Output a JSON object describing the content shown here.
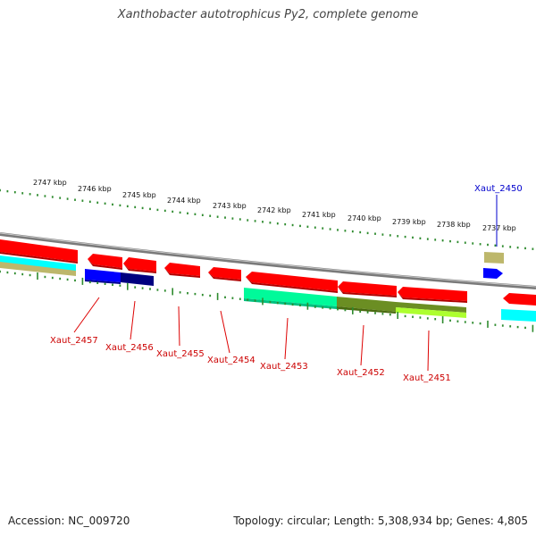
{
  "title": "Xanthobacter autotrophicus Py2, complete genome",
  "footer": {
    "accession": "Accession: NC_009720",
    "summary": "Topology: circular; Length: 5,308,934 bp; Genes: 4,805"
  },
  "colors": {
    "backbone": "#8a8a8a",
    "tick": "#2e8b2e",
    "label_red": "#cc0000",
    "label_blue": "#0000cc",
    "gene_red": "#ff0000",
    "gene_cyan": "#00ffff",
    "gene_tan": "#bdb76b",
    "gene_blue": "#0000ff",
    "gene_navy": "#000080",
    "gene_teal": "#00fa9a",
    "gene_olive": "#6b8e23",
    "gene_lime": "#adff2f"
  },
  "scale": {
    "ticks": [
      {
        "label": "2747 kbp"
      },
      {
        "label": "2746 kbp"
      },
      {
        "label": "2745 kbp"
      },
      {
        "label": "2744 kbp"
      },
      {
        "label": "2743 kbp"
      },
      {
        "label": "2742 kbp"
      },
      {
        "label": "2741 kbp"
      },
      {
        "label": "2740 kbp"
      },
      {
        "label": "2739 kbp"
      },
      {
        "label": "2738 kbp"
      },
      {
        "label": "2737 kbp"
      }
    ]
  },
  "gene_labels": [
    {
      "name": "Xaut_2457",
      "color": "red"
    },
    {
      "name": "Xaut_2456",
      "color": "red"
    },
    {
      "name": "Xaut_2455",
      "color": "red"
    },
    {
      "name": "Xaut_2454",
      "color": "red"
    },
    {
      "name": "Xaut_2453",
      "color": "red"
    },
    {
      "name": "Xaut_2452",
      "color": "red"
    },
    {
      "name": "Xaut_2451",
      "color": "red"
    },
    {
      "name": "Xaut_2450",
      "color": "blue"
    }
  ]
}
